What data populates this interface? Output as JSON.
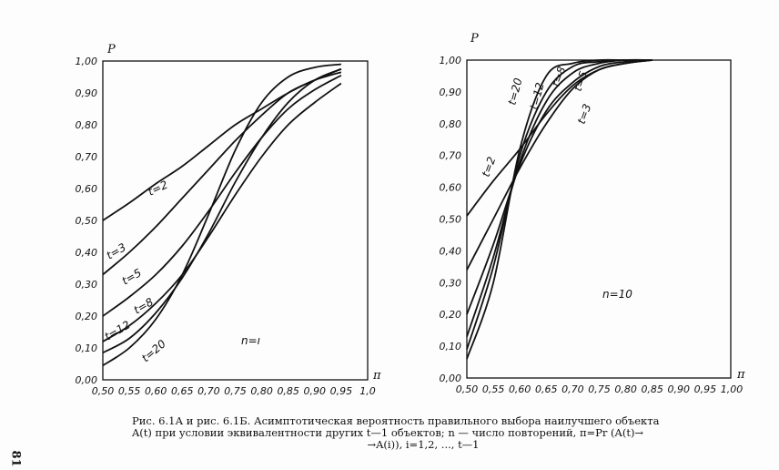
{
  "chart_data": [
    {
      "type": "line",
      "id": "6.1A",
      "ylabel": "P",
      "xlabel": "π",
      "annotation": "n=1",
      "annotation_shown": "n=ı",
      "xlim": [
        0.5,
        1.0
      ],
      "ylim": [
        0,
        1
      ],
      "xticks": [
        "0,50",
        "0,55",
        "0,60",
        "0,65",
        "0,70",
        "0,75",
        "0,80",
        "0,85",
        "0,90",
        "0,95",
        "1,0"
      ],
      "yticks": [
        "0,00",
        "0,10",
        "0,20",
        "0,30",
        "0,40",
        "0,50",
        "0,60",
        "0,70",
        "0,80",
        "0,90",
        "1,00"
      ],
      "x": [
        0.5,
        0.55,
        0.6,
        0.65,
        0.7,
        0.75,
        0.8,
        0.85,
        0.9,
        0.95
      ],
      "series": [
        {
          "name": "t=2",
          "values": [
            0.5,
            0.555,
            0.615,
            0.67,
            0.735,
            0.8,
            0.85,
            0.9,
            0.94,
            0.965
          ]
        },
        {
          "name": "t=3",
          "values": [
            0.33,
            0.4,
            0.48,
            0.57,
            0.66,
            0.75,
            0.83,
            0.9,
            0.94,
            0.975
          ]
        },
        {
          "name": "t=5",
          "values": [
            0.2,
            0.26,
            0.33,
            0.42,
            0.53,
            0.65,
            0.76,
            0.85,
            0.91,
            0.955
          ]
        },
        {
          "name": "t=8",
          "values": [
            0.12,
            0.17,
            0.24,
            0.33,
            0.45,
            0.58,
            0.7,
            0.8,
            0.87,
            0.93
          ]
        },
        {
          "name": "t=12",
          "values": [
            0.085,
            0.13,
            0.21,
            0.32,
            0.46,
            0.62,
            0.76,
            0.87,
            0.94,
            0.975
          ]
        },
        {
          "name": "t=20",
          "values": [
            0.045,
            0.1,
            0.19,
            0.33,
            0.52,
            0.72,
            0.87,
            0.95,
            0.98,
            0.99
          ]
        }
      ]
    },
    {
      "type": "line",
      "id": "6.1B",
      "ylabel": "P",
      "xlabel": "π",
      "annotation": "n=10",
      "xlim": [
        0.5,
        1.0
      ],
      "ylim": [
        0,
        1
      ],
      "xticks": [
        "0,50",
        "0,55",
        "0,60",
        "0,65",
        "0,70",
        "0,75",
        "0,80",
        "0,85",
        "0,90",
        "0,95",
        "1,00"
      ],
      "yticks": [
        "0,00",
        "0,10",
        "0,20",
        "0,30",
        "0,40",
        "0,50",
        "0,60",
        "0,70",
        "0,80",
        "0,90",
        "1,00"
      ],
      "x": [
        0.5,
        0.55,
        0.6,
        0.65,
        0.7,
        0.75,
        0.8,
        0.85
      ],
      "series": [
        {
          "name": "t=2",
          "values": [
            0.51,
            0.62,
            0.72,
            0.83,
            0.92,
            0.97,
            0.99,
            1.0
          ]
        },
        {
          "name": "t=3",
          "values": [
            0.34,
            0.5,
            0.66,
            0.8,
            0.91,
            0.97,
            0.99,
            1.0
          ]
        },
        {
          "name": "t=5",
          "values": [
            0.2,
            0.42,
            0.67,
            0.84,
            0.93,
            0.98,
            0.995,
            1.0
          ]
        },
        {
          "name": "t=8",
          "values": [
            0.13,
            0.38,
            0.68,
            0.87,
            0.96,
            0.99,
            1.0,
            1.0
          ]
        },
        {
          "name": "t=12",
          "values": [
            0.09,
            0.35,
            0.7,
            0.9,
            0.98,
            0.995,
            1.0,
            1.0
          ]
        },
        {
          "name": "t=20",
          "values": [
            0.06,
            0.3,
            0.72,
            0.95,
            0.99,
            1.0,
            1.0,
            1.0
          ]
        }
      ]
    }
  ],
  "caption": {
    "line1": "Рис. 6.1А и рис. 6.1Б. Асимптотическая вероятность правильного выбора наилучшего объекта",
    "line2": "A(t) при условии эквивалентности других t—1 объектов;  n — число повторений,  π=Pr (A(t)→",
    "line3": "→A(i)), i=1,2, ..., t—1"
  },
  "page_number": "81"
}
